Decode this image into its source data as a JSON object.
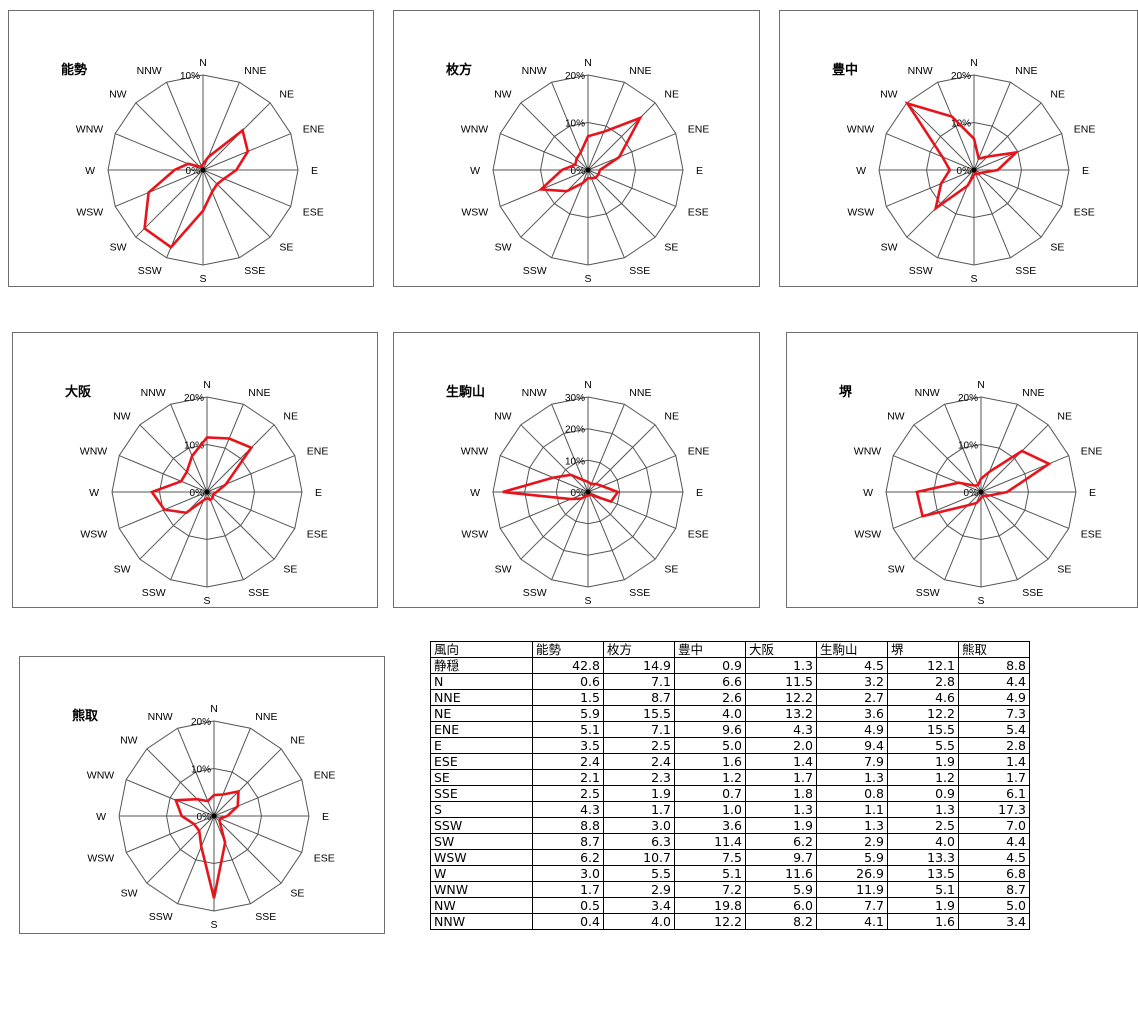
{
  "directions": [
    "N",
    "NNE",
    "NE",
    "ENE",
    "E",
    "ESE",
    "SE",
    "SSE",
    "S",
    "SSW",
    "SW",
    "WSW",
    "W",
    "WNW",
    "NW",
    "NNW"
  ],
  "colors": {
    "series": "#e8141b",
    "grid": "#555555"
  },
  "chart_data": [
    {
      "type": "radar",
      "title": "能勢",
      "rmax": 10,
      "ticks": [
        "0%",
        "10%"
      ],
      "values": [
        0.6,
        1.5,
        5.9,
        5.1,
        3.5,
        2.4,
        2.1,
        2.5,
        4.3,
        8.8,
        8.7,
        6.2,
        3.0,
        1.7,
        0.5,
        0.4
      ]
    },
    {
      "type": "radar",
      "title": "枚方",
      "rmax": 20,
      "ticks": [
        "0%",
        "10%",
        "20%"
      ],
      "values": [
        7.1,
        8.7,
        15.5,
        7.1,
        2.5,
        2.4,
        2.3,
        1.9,
        1.7,
        3.0,
        6.3,
        10.7,
        5.5,
        2.9,
        3.4,
        4.0
      ]
    },
    {
      "type": "radar",
      "title": "豊中",
      "rmax": 20,
      "ticks": [
        "0%",
        "10%",
        "20%"
      ],
      "values": [
        6.6,
        2.6,
        4.0,
        9.6,
        5.0,
        1.6,
        1.2,
        0.7,
        1.0,
        3.6,
        11.4,
        7.5,
        5.1,
        7.2,
        19.8,
        12.2
      ]
    },
    {
      "type": "radar",
      "title": "大阪",
      "rmax": 20,
      "ticks": [
        "0%",
        "10%",
        "20%"
      ],
      "values": [
        11.5,
        12.2,
        13.2,
        4.3,
        2.0,
        1.4,
        1.7,
        1.8,
        1.3,
        1.9,
        6.2,
        9.7,
        11.6,
        5.9,
        6.0,
        8.2
      ]
    },
    {
      "type": "radar",
      "title": "生駒山",
      "rmax": 30,
      "ticks": [
        "0%",
        "10%",
        "20%",
        "30%"
      ],
      "values": [
        3.2,
        2.7,
        3.6,
        4.9,
        9.4,
        7.9,
        1.3,
        0.8,
        1.1,
        1.3,
        2.9,
        5.9,
        26.9,
        11.9,
        7.7,
        4.1
      ]
    },
    {
      "type": "radar",
      "title": "堺",
      "rmax": 20,
      "ticks": [
        "0%",
        "10%",
        "20%"
      ],
      "values": [
        2.8,
        4.6,
        12.2,
        15.5,
        5.5,
        1.9,
        1.2,
        0.9,
        1.3,
        2.5,
        4.0,
        13.3,
        13.5,
        5.1,
        1.9,
        1.6
      ]
    },
    {
      "type": "radar",
      "title": "熊取",
      "rmax": 20,
      "ticks": [
        "0%",
        "10%",
        "20%"
      ],
      "values": [
        4.4,
        4.9,
        7.3,
        5.4,
        2.8,
        1.4,
        1.7,
        6.1,
        17.3,
        7.0,
        4.4,
        4.5,
        6.8,
        8.7,
        5.0,
        3.4
      ]
    }
  ],
  "table": {
    "headers": [
      "風向",
      "能勢",
      "枚方",
      "豊中",
      "大阪",
      "生駒山",
      "堺",
      "熊取"
    ],
    "rows": [
      [
        "静穏",
        "42.8",
        "14.9",
        "0.9",
        "1.3",
        "4.5",
        "12.1",
        "8.8"
      ],
      [
        "N",
        "0.6",
        "7.1",
        "6.6",
        "11.5",
        "3.2",
        "2.8",
        "4.4"
      ],
      [
        "NNE",
        "1.5",
        "8.7",
        "2.6",
        "12.2",
        "2.7",
        "4.6",
        "4.9"
      ],
      [
        "NE",
        "5.9",
        "15.5",
        "4.0",
        "13.2",
        "3.6",
        "12.2",
        "7.3"
      ],
      [
        "ENE",
        "5.1",
        "7.1",
        "9.6",
        "4.3",
        "4.9",
        "15.5",
        "5.4"
      ],
      [
        "E",
        "3.5",
        "2.5",
        "5.0",
        "2.0",
        "9.4",
        "5.5",
        "2.8"
      ],
      [
        "ESE",
        "2.4",
        "2.4",
        "1.6",
        "1.4",
        "7.9",
        "1.9",
        "1.4"
      ],
      [
        "SE",
        "2.1",
        "2.3",
        "1.2",
        "1.7",
        "1.3",
        "1.2",
        "1.7"
      ],
      [
        "SSE",
        "2.5",
        "1.9",
        "0.7",
        "1.8",
        "0.8",
        "0.9",
        "6.1"
      ],
      [
        "S",
        "4.3",
        "1.7",
        "1.0",
        "1.3",
        "1.1",
        "1.3",
        "17.3"
      ],
      [
        "SSW",
        "8.8",
        "3.0",
        "3.6",
        "1.9",
        "1.3",
        "2.5",
        "7.0"
      ],
      [
        "SW",
        "8.7",
        "6.3",
        "11.4",
        "6.2",
        "2.9",
        "4.0",
        "4.4"
      ],
      [
        "WSW",
        "6.2",
        "10.7",
        "7.5",
        "9.7",
        "5.9",
        "13.3",
        "4.5"
      ],
      [
        "W",
        "3.0",
        "5.5",
        "5.1",
        "11.6",
        "26.9",
        "13.5",
        "6.8"
      ],
      [
        "WNW",
        "1.7",
        "2.9",
        "7.2",
        "5.9",
        "11.9",
        "5.1",
        "8.7"
      ],
      [
        "NW",
        "0.5",
        "3.4",
        "19.8",
        "6.0",
        "7.7",
        "1.9",
        "5.0"
      ],
      [
        "NNW",
        "0.4",
        "4.0",
        "12.2",
        "8.2",
        "4.1",
        "1.6",
        "3.4"
      ]
    ]
  }
}
